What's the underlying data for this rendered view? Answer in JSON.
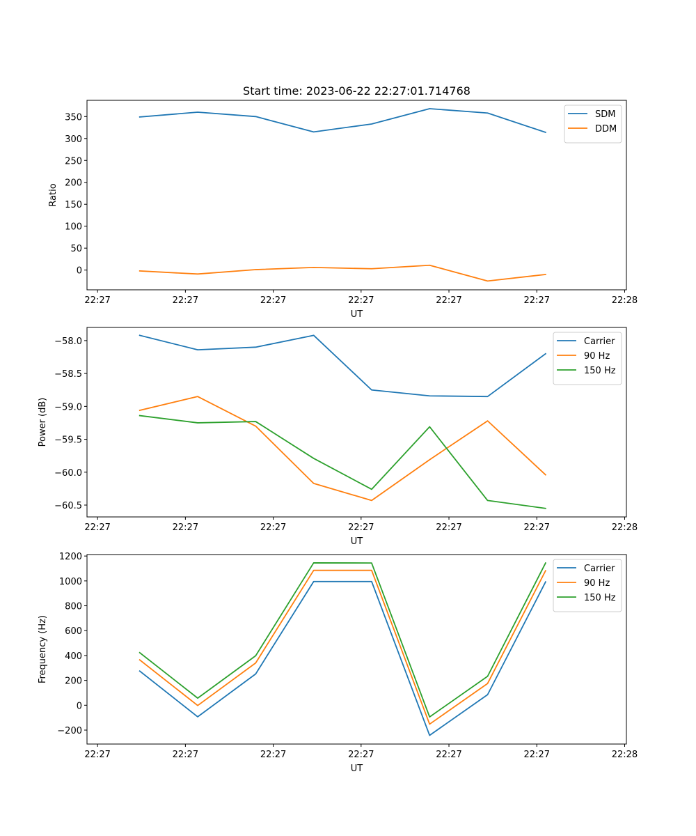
{
  "chart_data": [
    {
      "type": "line",
      "title": "Start time: 2023-06-22 22:27:01.714768",
      "xlabel": "UT",
      "ylabel": "Ratio",
      "x_tick_labels": [
        "22:27",
        "22:27",
        "22:27",
        "22:27",
        "22:27",
        "22:27",
        "22:28"
      ],
      "x_tick_seconds": [
        0,
        10,
        20,
        30,
        40,
        50,
        60
      ],
      "xlim_seconds": [
        -1.2,
        60.2
      ],
      "x_seconds": [
        4.8,
        11.4,
        18.0,
        24.6,
        31.2,
        37.8,
        44.4,
        51.0
      ],
      "y_ticks": [
        0,
        50,
        100,
        150,
        200,
        250,
        300,
        350
      ],
      "ylim": [
        -45,
        387
      ],
      "legend_position": "upper right",
      "grid": false,
      "series": [
        {
          "name": "SDM",
          "color": "#1f77b4",
          "values": [
            349,
            360,
            350,
            315,
            333,
            368,
            358,
            314
          ]
        },
        {
          "name": "DDM",
          "color": "#ff7f0e",
          "values": [
            -2,
            -9,
            1,
            6,
            3,
            11,
            -25,
            -10
          ]
        }
      ]
    },
    {
      "type": "line",
      "title": "",
      "xlabel": "UT",
      "ylabel": "Power (dB)",
      "x_tick_labels": [
        "22:27",
        "22:27",
        "22:27",
        "22:27",
        "22:27",
        "22:27",
        "22:28"
      ],
      "x_tick_seconds": [
        0,
        10,
        20,
        30,
        40,
        50,
        60
      ],
      "xlim_seconds": [
        -1.2,
        60.2
      ],
      "x_seconds": [
        4.8,
        11.4,
        18.0,
        24.6,
        31.2,
        37.8,
        44.4,
        51.0
      ],
      "y_ticks": [
        -58.0,
        -58.5,
        -59.0,
        -59.5,
        -60.0,
        -60.5
      ],
      "y_tick_labels": [
        "−58.0",
        "−58.5",
        "−59.0",
        "−59.5",
        "−60.0",
        "−60.5"
      ],
      "ylim": [
        -60.68,
        -57.8
      ],
      "legend_position": "upper right",
      "grid": false,
      "series": [
        {
          "name": "Carrier",
          "color": "#1f77b4",
          "values": [
            -57.92,
            -58.14,
            -58.1,
            -57.92,
            -58.75,
            -58.84,
            -58.85,
            -58.2
          ]
        },
        {
          "name": "90 Hz",
          "color": "#ff7f0e",
          "values": [
            -59.06,
            -58.85,
            -59.3,
            -60.17,
            -60.43,
            -59.81,
            -59.22,
            -60.04
          ]
        },
        {
          "name": "150 Hz",
          "color": "#2ca02c",
          "values": [
            -59.14,
            -59.25,
            -59.23,
            -59.79,
            -60.26,
            -59.31,
            -60.43,
            -60.55
          ]
        }
      ]
    },
    {
      "type": "line",
      "title": "",
      "xlabel": "UT",
      "ylabel": "Frequency (Hz)",
      "x_tick_labels": [
        "22:27",
        "22:27",
        "22:27",
        "22:27",
        "22:27",
        "22:27",
        "22:28"
      ],
      "x_tick_seconds": [
        0,
        10,
        20,
        30,
        40,
        50,
        60
      ],
      "xlim_seconds": [
        -1.2,
        60.2
      ],
      "x_seconds": [
        4.8,
        11.4,
        18.0,
        24.6,
        31.2,
        37.8,
        44.4,
        51.0
      ],
      "y_ticks": [
        -200,
        0,
        200,
        400,
        600,
        800,
        1000,
        1200
      ],
      "y_tick_labels": [
        "−200",
        "0",
        "200",
        "400",
        "600",
        "800",
        "1000",
        "1200"
      ],
      "ylim": [
        -312,
        1212
      ],
      "legend_position": "upper right",
      "grid": false,
      "series": [
        {
          "name": "Carrier",
          "color": "#1f77b4",
          "values": [
            275,
            -93,
            252,
            995,
            995,
            -242,
            85,
            992
          ]
        },
        {
          "name": "90 Hz",
          "color": "#ff7f0e",
          "values": [
            365,
            -2,
            340,
            1085,
            1085,
            -152,
            175,
            1082
          ]
        },
        {
          "name": "150 Hz",
          "color": "#2ca02c",
          "values": [
            423,
            57,
            398,
            1145,
            1144,
            -94,
            233,
            1144
          ]
        }
      ]
    }
  ]
}
